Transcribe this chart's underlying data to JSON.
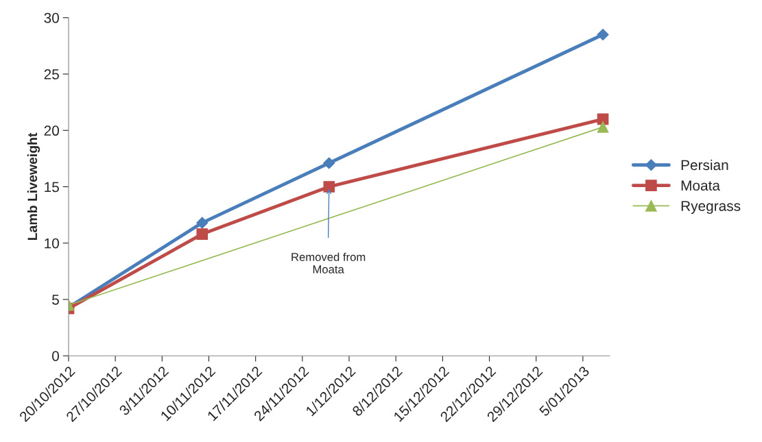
{
  "chart_data": {
    "type": "line",
    "ylabel": "Lamb Liveweight",
    "xlim": [
      "2012-10-20",
      "2013-01-09"
    ],
    "xticks": [
      {
        "value": "2012-10-20",
        "label": "20/10/2012"
      },
      {
        "value": "2012-10-27",
        "label": "27/10/2012"
      },
      {
        "value": "2012-11-03",
        "label": "3/11/2012"
      },
      {
        "value": "2012-11-10",
        "label": "10/11/2012"
      },
      {
        "value": "2012-11-17",
        "label": "17/11/2012"
      },
      {
        "value": "2012-11-24",
        "label": "24/11/2012"
      },
      {
        "value": "2012-12-01",
        "label": "1/12/2012"
      },
      {
        "value": "2012-12-08",
        "label": "8/12/2012"
      },
      {
        "value": "2012-12-15",
        "label": "15/12/2012"
      },
      {
        "value": "2012-12-22",
        "label": "22/12/2012"
      },
      {
        "value": "2012-12-29",
        "label": "29/12/2012"
      },
      {
        "value": "2013-01-05",
        "label": "5/01/2013"
      }
    ],
    "ylim": [
      0,
      30
    ],
    "yticks": [
      0,
      5,
      10,
      15,
      20,
      25,
      30
    ],
    "legend": "right",
    "grid": false,
    "series": [
      {
        "name": "Persian",
        "color": "#4a7ebb",
        "marker": "diamond",
        "x": [
          "2012-10-20",
          "2012-11-09",
          "2012-11-28",
          "2013-01-08"
        ],
        "values": [
          4.3,
          11.8,
          17.1,
          28.5
        ]
      },
      {
        "name": "Moata",
        "color": "#be4b48",
        "marker": "square",
        "x": [
          "2012-10-20",
          "2012-11-09",
          "2012-11-28",
          "2013-01-08"
        ],
        "values": [
          4.2,
          10.8,
          15.0,
          21.0
        ]
      },
      {
        "name": "Ryegrass",
        "color": "#98b954",
        "marker": "triangle",
        "x": [
          "2012-10-20",
          "2013-01-08"
        ],
        "values": [
          4.5,
          20.3
        ]
      }
    ],
    "annotations": [
      "Removed from\nMoata"
    ]
  }
}
